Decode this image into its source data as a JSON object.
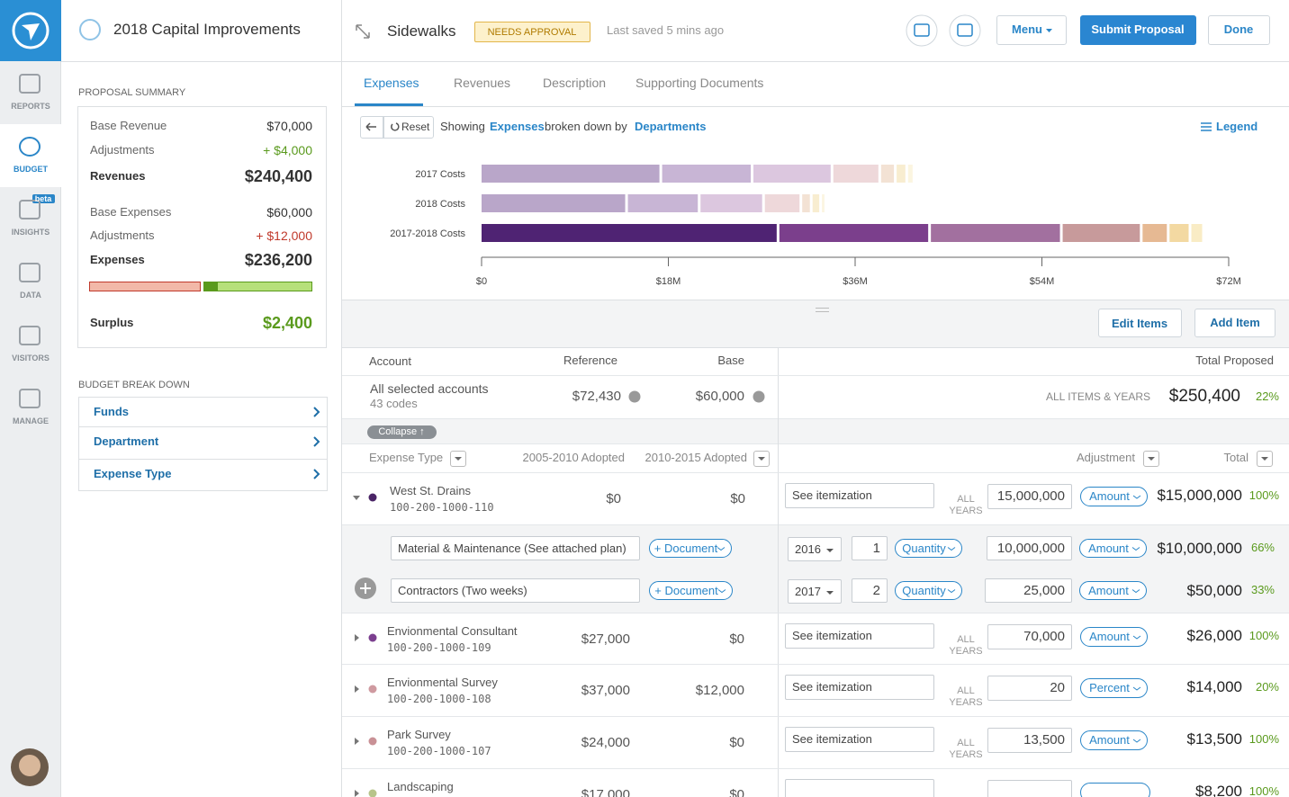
{
  "sidebar": {
    "nav": [
      "REPORTS",
      "BUDGET",
      "INSIGHTS",
      "DATA",
      "VISITORS",
      "MANAGE"
    ],
    "badge": "beta"
  },
  "panel": {
    "title": "2018 Capital Improvements",
    "summary_heading": "PROPOSAL SUMMARY",
    "summary": [
      {
        "label": "Base Revenue",
        "value": "$70,000"
      },
      {
        "label": "Adjustments",
        "value": "+ $4,000"
      },
      {
        "label": "Revenues",
        "value": "$240,400"
      },
      {
        "label": "Base Expenses",
        "value": "$60,000"
      },
      {
        "label": "Adjustments",
        "value": "+ $12,000"
      },
      {
        "label": "Expenses",
        "value": "$236,200"
      },
      {
        "label": "Surplus",
        "value": "$2,400"
      }
    ],
    "breakdown_heading": "BUDGET BREAK DOWN",
    "breakdown": [
      "Funds",
      "Department",
      "Expense Type"
    ]
  },
  "header": {
    "title": "Sidewalks",
    "status": "NEEDS APPROVAL",
    "saved": "Last saved 5 mins ago",
    "buttons": [
      "Menu",
      "Submit Proposal",
      "Done"
    ]
  },
  "tabs": [
    "Expenses",
    "Revenues",
    "Description",
    "Supporting Documents"
  ],
  "chart_toolbar": {
    "reset": "Reset",
    "showing": "Showing",
    "measure": "Expenses",
    "by": "broken down by",
    "dimension": "Departments",
    "legend": "Legend"
  },
  "chart_data": {
    "type": "bar",
    "orientation": "horizontal",
    "stacked": true,
    "categories": [
      "2017 Costs",
      "2018 Costs",
      "2017-2018 Costs"
    ],
    "series": [
      {
        "colors": [
          "#b9a6c9",
          "#b9a6c9",
          "#4f2373"
        ],
        "values": [
          17.4,
          14.1,
          28.7
        ]
      },
      {
        "colors": [
          "#c8b5d5",
          "#c8b5d5",
          "#7b3f8c"
        ],
        "values": [
          8.8,
          7.0,
          14.6
        ]
      },
      {
        "colors": [
          "#dcc7df",
          "#dcc7df",
          "#a2709f"
        ],
        "values": [
          7.7,
          6.2,
          12.7
        ]
      },
      {
        "colors": [
          "#eed8da",
          "#eed8da",
          "#c79a9b"
        ],
        "values": [
          4.6,
          3.6,
          7.7
        ]
      },
      {
        "colors": [
          "#f3e2d4",
          "#f3e2d4",
          "#e6b993"
        ],
        "values": [
          1.5,
          1.0,
          2.6
        ]
      },
      {
        "colors": [
          "#f8edd0",
          "#f8edd0",
          "#f3d9a2"
        ],
        "values": [
          1.1,
          0.9,
          2.1
        ]
      },
      {
        "colors": [
          "#fbf5e0",
          "#fbf5e0",
          "#f9ecc5"
        ],
        "values": [
          0.7,
          0.5,
          1.3
        ]
      }
    ],
    "xlim": [
      0,
      72
    ],
    "xticks": [
      {
        "value": 0,
        "label": "$0"
      },
      {
        "value": 18,
        "label": "$18M"
      },
      {
        "value": 36,
        "label": "$36M"
      },
      {
        "value": 54,
        "label": "$54M"
      },
      {
        "value": 72,
        "label": "$72M"
      }
    ]
  },
  "actions": [
    "Edit Items",
    "Add Item"
  ],
  "table": {
    "columns": {
      "account": "Account",
      "reference": "Reference",
      "base": "Base",
      "total": "Total Proposed"
    },
    "summary": {
      "account": "All selected accounts",
      "codes": "43 codes",
      "reference": "$72,430",
      "base": "$60,000",
      "scope": "ALL ITEMS & YEARS",
      "total": "$250,400",
      "percent": "22%"
    },
    "collapse": "Collapse ↑",
    "subcolumns": [
      "Expense Type",
      "2005-2010 Adopted",
      "2010-2015 Adopted",
      "Adjustment",
      "Total"
    ],
    "rows": [
      {
        "name": "West St. Drains",
        "code": "100-200-1000-110",
        "reference": "$0",
        "base": "$0",
        "note": "See itemization",
        "years": "ALL YEARS",
        "amount": "15,000,000",
        "unit": "Amount",
        "total": "$15,000,000",
        "percent": "100%",
        "color": "#4a2466",
        "expanded": true,
        "items": [
          {
            "description": "Material & Maintenance (See attached plan)",
            "document": "+ Document",
            "year": "2016",
            "quantity": "1",
            "quantity_unit": "Quantity",
            "amount": "10,000,000",
            "unit": "Amount",
            "total": "$10,000,000",
            "percent": "66%"
          },
          {
            "description": "Contractors (Two weeks)",
            "document": "+ Document",
            "year": "2017",
            "quantity": "2",
            "quantity_unit": "Quantity",
            "amount": "25,000",
            "unit": "Amount",
            "total": "$50,000",
            "percent": "33%"
          }
        ]
      },
      {
        "name": "Envionmental Consultant",
        "code": "100-200-1000-109",
        "reference": "$27,000",
        "base": "$0",
        "note": "See itemization",
        "years": "ALL YEARS",
        "amount": "70,000",
        "unit": "Amount",
        "total": "$26,000",
        "percent": "100%",
        "color": "#7b3f8f"
      },
      {
        "name": "Envionmental Survey",
        "code": "100-200-1000-108",
        "reference": "$37,000",
        "base": "$12,000",
        "note": "See itemization",
        "years": "ALL YEARS",
        "amount": "20",
        "unit": "Percent",
        "total": "$14,000",
        "percent": "20%",
        "color": "#cf9aa0"
      },
      {
        "name": "Park Survey",
        "code": "100-200-1000-107",
        "reference": "$24,000",
        "base": "$0",
        "note": "See itemization",
        "years": "ALL YEARS",
        "amount": "13,500",
        "unit": "Amount",
        "total": "$13,500",
        "percent": "100%",
        "color": "#c99196"
      },
      {
        "name": "Landscaping",
        "reference": "$17,000",
        "base": "$0",
        "total": "$8,200",
        "percent": "100%",
        "color": "#b7c48a"
      }
    ]
  }
}
